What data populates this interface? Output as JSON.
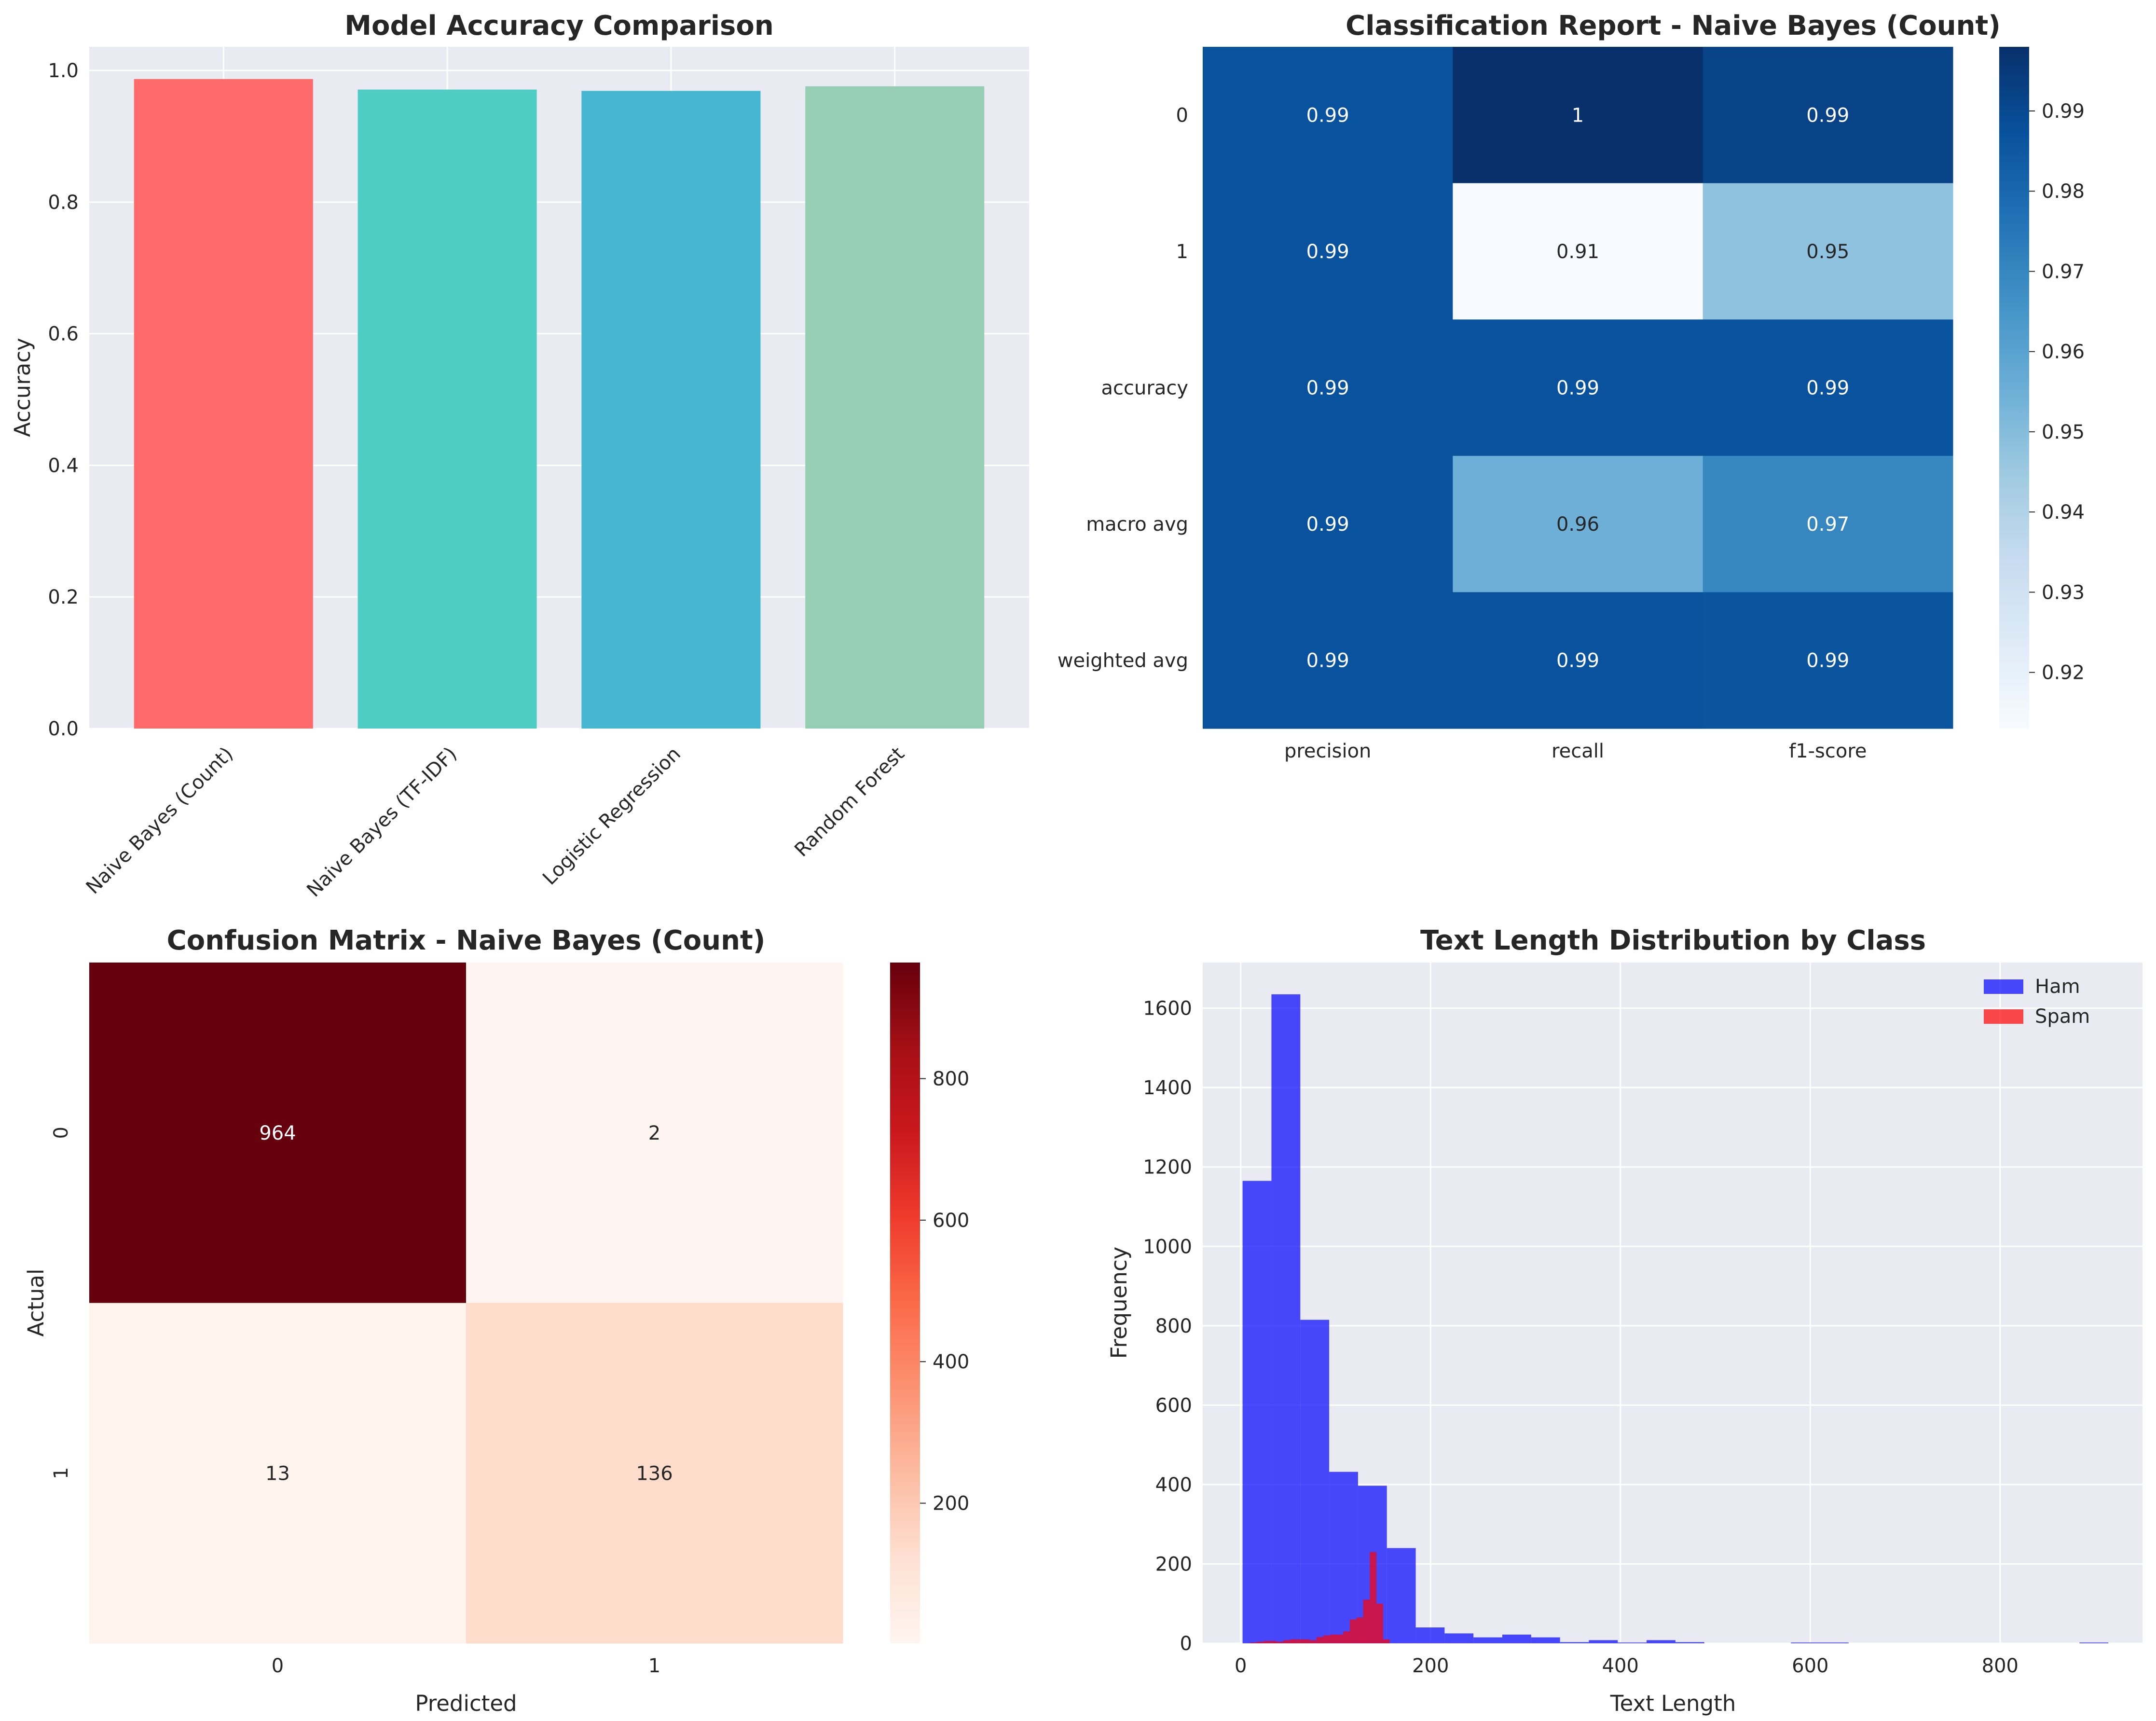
{
  "chart_data": [
    {
      "type": "bar",
      "title": "Model Accuracy Comparison",
      "xlabel": "",
      "ylabel": "Accuracy",
      "categories": [
        "Naive Bayes (Count)",
        "Naive Bayes (TF-IDF)",
        "Logistic Regression",
        "Random Forest"
      ],
      "values": [
        0.987,
        0.971,
        0.969,
        0.976
      ],
      "colors": [
        "#ff6b6b",
        "#4ecdc4",
        "#45b7d1",
        "#96ceb4"
      ],
      "yticks": [
        "0.0",
        "0.2",
        "0.4",
        "0.6",
        "0.8",
        "1.0"
      ],
      "ylim": [
        0,
        1.036
      ],
      "grid": true
    },
    {
      "type": "heatmap",
      "title": "Classification Report - Naive Bayes (Count)",
      "rows": [
        "0",
        "1",
        "accuracy",
        "macro avg",
        "weighted avg"
      ],
      "columns": [
        "precision",
        "recall",
        "f1-score"
      ],
      "values": [
        [
          0.987,
          0.998,
          0.992
        ],
        [
          0.987,
          0.913,
          0.948
        ],
        [
          0.987,
          0.987,
          0.987
        ],
        [
          0.987,
          0.955,
          0.97
        ],
        [
          0.987,
          0.987,
          0.986
        ]
      ],
      "labels": [
        [
          "0.99",
          "1",
          "0.99"
        ],
        [
          "0.99",
          "0.91",
          "0.95"
        ],
        [
          "0.99",
          "0.99",
          "0.99"
        ],
        [
          "0.99",
          "0.96",
          "0.97"
        ],
        [
          "0.99",
          "0.99",
          "0.99"
        ]
      ],
      "colormap": "Blues",
      "vmin": 0.913,
      "vmax": 0.998,
      "colorbar_ticks": [
        "0.92",
        "0.93",
        "0.94",
        "0.95",
        "0.96",
        "0.97",
        "0.98",
        "0.99"
      ]
    },
    {
      "type": "heatmap",
      "title": "Confusion Matrix - Naive Bayes (Count)",
      "xlabel": "Predicted",
      "ylabel": "Actual",
      "rows": [
        "0",
        "1"
      ],
      "columns": [
        "0",
        "1"
      ],
      "values": [
        [
          964,
          2
        ],
        [
          13,
          136
        ]
      ],
      "labels": [
        [
          "964",
          "2"
        ],
        [
          "13",
          "136"
        ]
      ],
      "colormap": "Reds",
      "vmin": 2,
      "vmax": 964,
      "colorbar_ticks": [
        "200",
        "400",
        "600",
        "800"
      ]
    },
    {
      "type": "histogram",
      "title": "Text Length Distribution by Class",
      "xlabel": "Text Length",
      "ylabel": "Frequency",
      "xlim": [
        -40,
        950
      ],
      "ylim": [
        0,
        1715
      ],
      "xticks": [
        "0",
        "200",
        "400",
        "600",
        "800"
      ],
      "yticks": [
        "0",
        "200",
        "400",
        "600",
        "800",
        "1000",
        "1200",
        "1400",
        "1600"
      ],
      "legend_position": "top-right",
      "series": [
        {
          "name": "Ham",
          "color": "#0000ff",
          "bin_start": 2,
          "bin_width": 30.4,
          "values": [
            1165,
            1635,
            815,
            432,
            397,
            240,
            40,
            25,
            15,
            22,
            15,
            3,
            8,
            2,
            8,
            3,
            0,
            0,
            0,
            2,
            2,
            0,
            0,
            0,
            0,
            0,
            0,
            0,
            0,
            2
          ]
        },
        {
          "name": "Spam",
          "color": "#ff0000",
          "bin_start": 10,
          "bin_width": 7.0,
          "values": [
            2,
            4,
            6,
            6,
            4,
            8,
            10,
            10,
            10,
            8,
            16,
            20,
            22,
            22,
            30,
            60,
            65,
            110,
            230,
            100,
            10
          ]
        }
      ]
    }
  ]
}
